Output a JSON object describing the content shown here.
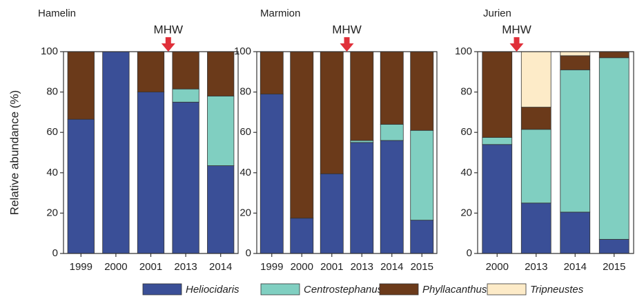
{
  "chart_data": [
    {
      "type": "bar",
      "stacked": true,
      "title": "Hamelin",
      "ylabel": "Relative abundance (%)",
      "categories": [
        "1999",
        "2000",
        "2001",
        "2013",
        "2014"
      ],
      "series": [
        {
          "color": "#3a4f97",
          "values": [
            66.5,
            100,
            80,
            75,
            43.5
          ]
        },
        {
          "color": "#80cfc1",
          "values": [
            0,
            0,
            0,
            6.5,
            34.5
          ]
        },
        {
          "color": "#6b3a1a",
          "values": [
            33.5,
            0,
            20,
            18.5,
            22
          ]
        }
      ],
      "ylim": [
        0,
        100
      ],
      "yticks": [
        0,
        20,
        40,
        60,
        80,
        100
      ],
      "annotation": "MHW",
      "annotation_between": [
        2,
        3
      ]
    },
    {
      "type": "bar",
      "stacked": true,
      "title": "Marmion",
      "categories": [
        "1999",
        "2000",
        "2001",
        "2013",
        "2014",
        "2015"
      ],
      "series": [
        {
          "color": "#3a4f97",
          "values": [
            79,
            17.5,
            39.5,
            55,
            56,
            16.5
          ]
        },
        {
          "color": "#80cfc1",
          "values": [
            0,
            0,
            0,
            1,
            8,
            44.5
          ]
        },
        {
          "color": "#6b3a1a",
          "values": [
            21,
            82.5,
            60.5,
            44,
            36,
            39
          ]
        }
      ],
      "ylim": [
        0,
        100
      ],
      "yticks": [
        0,
        20,
        40,
        60,
        80,
        100
      ],
      "annotation": "MHW",
      "annotation_between": [
        2,
        3
      ]
    },
    {
      "type": "bar",
      "stacked": true,
      "title": "Jurien",
      "categories": [
        "2000",
        "2013",
        "2014",
        "2015"
      ],
      "series": [
        {
          "name": "Heliocidaris",
          "color": "#3a4f97",
          "values": [
            54,
            25,
            20.5,
            7
          ]
        },
        {
          "name": "Centrostephanus",
          "color": "#80cfc1",
          "values": [
            3.5,
            36.5,
            70.5,
            90
          ]
        },
        {
          "name": "Phyllacanthus",
          "color": "#6b3a1a",
          "values": [
            42.5,
            11,
            7,
            3
          ]
        },
        {
          "name": "Tripneustes",
          "color": "#fdebc8",
          "values": [
            0,
            27.5,
            2,
            0
          ]
        }
      ],
      "ylim": [
        0,
        100
      ],
      "yticks": [
        0,
        20,
        40,
        60,
        80,
        100
      ],
      "annotation": "MHW",
      "annotation_between": [
        0,
        1
      ]
    }
  ]
}
